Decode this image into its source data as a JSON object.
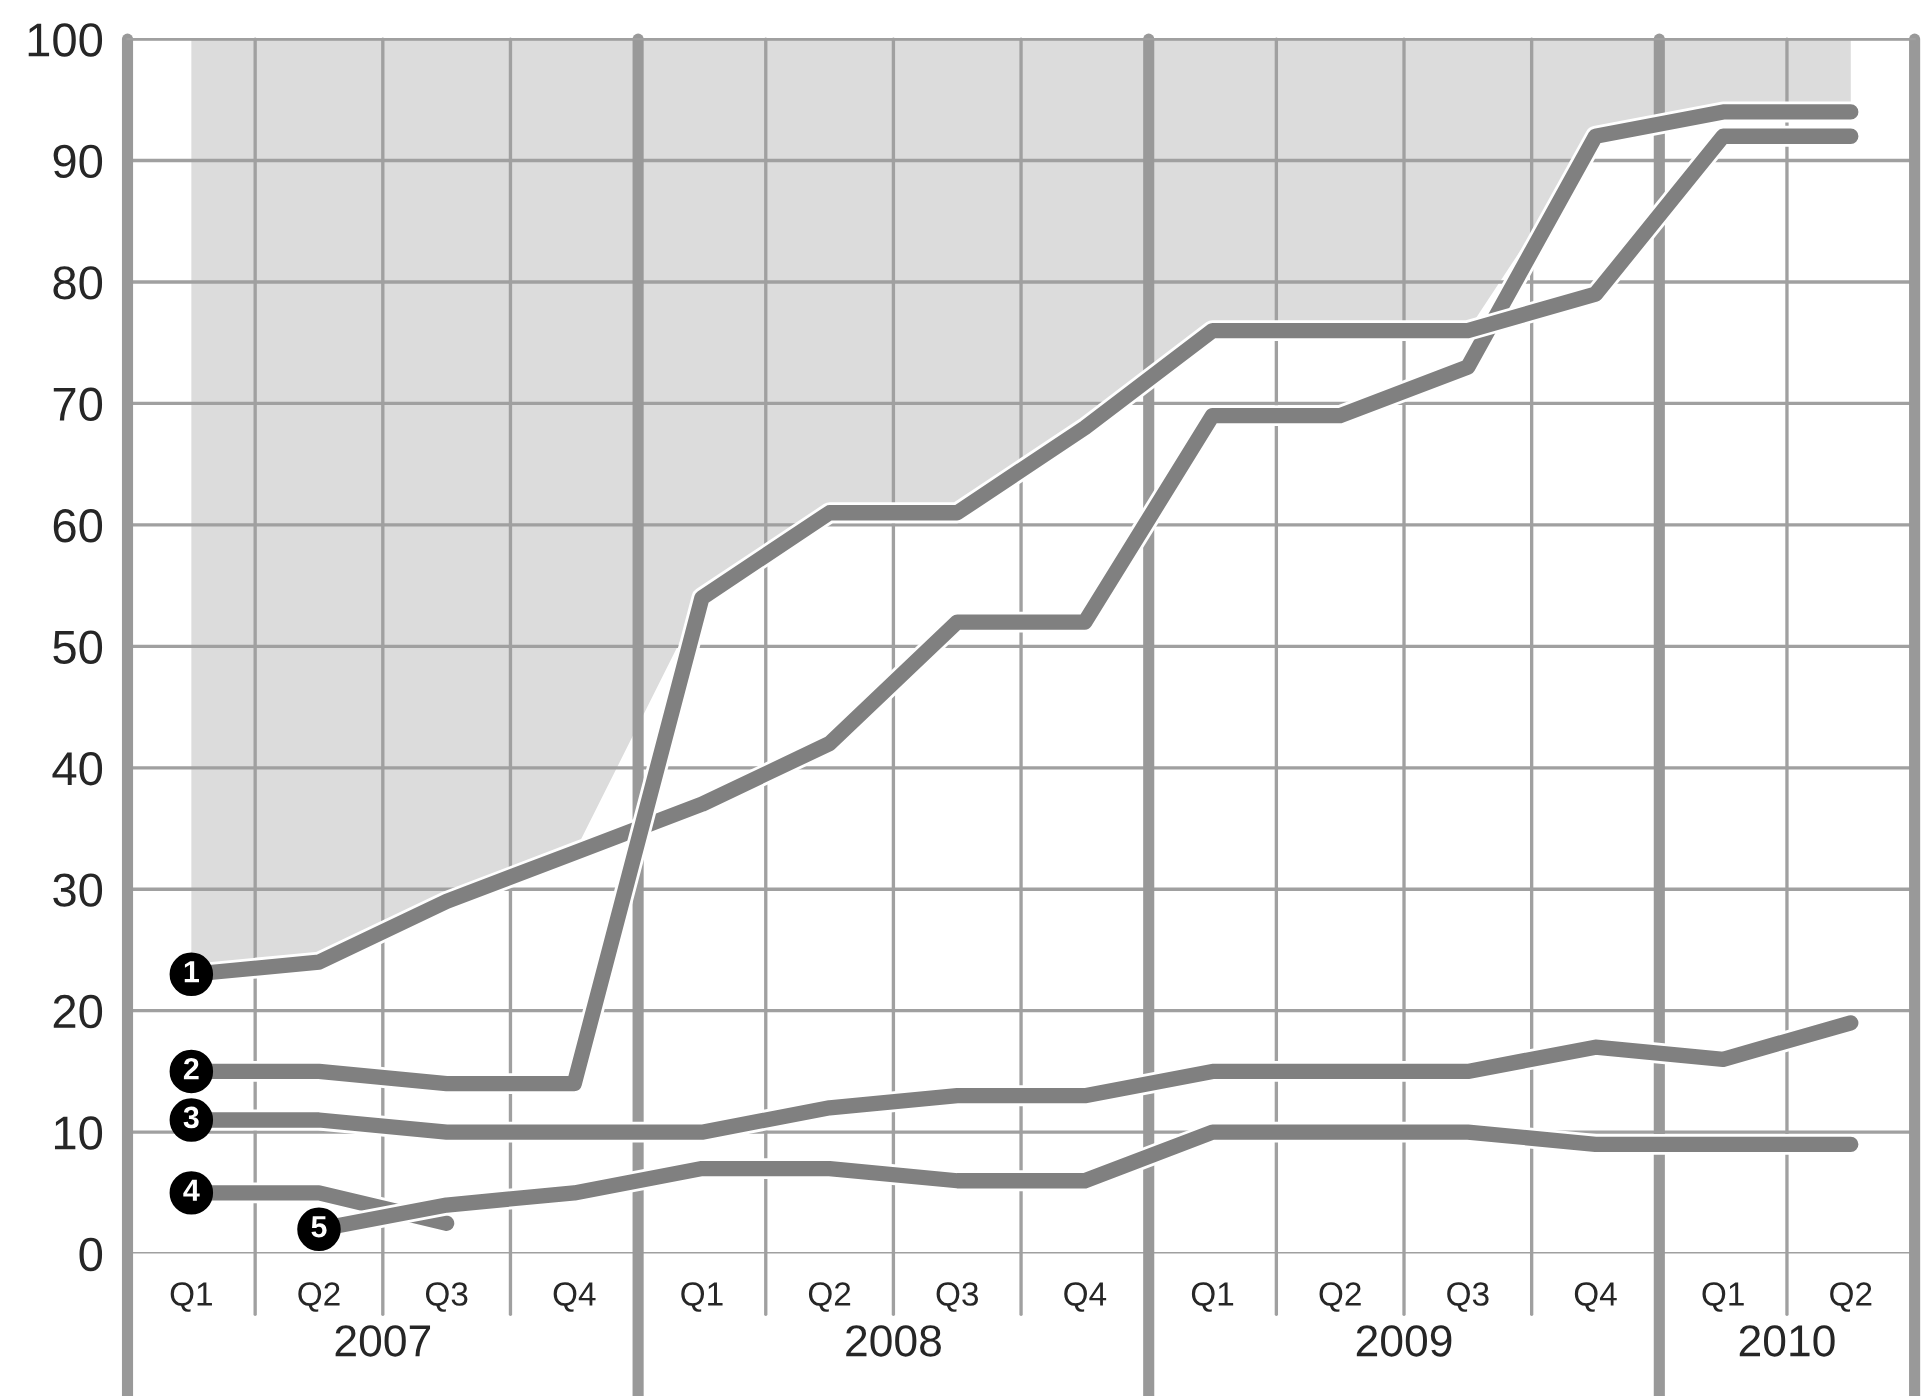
{
  "chart_data": {
    "type": "line",
    "categories": [
      "Q1",
      "Q2",
      "Q3",
      "Q4",
      "Q1",
      "Q2",
      "Q3",
      "Q4",
      "Q1",
      "Q2",
      "Q3",
      "Q4",
      "Q1",
      "Q2"
    ],
    "series": [
      {
        "type": "area",
        "color": "#dcdcdc",
        "values": [
          null,
          null,
          null,
          null,
          null,
          null,
          null,
          null,
          null,
          null,
          null,
          null,
          null,
          null
        ],
        "lower": [
          23,
          24,
          29,
          33,
          54,
          61,
          61,
          68,
          76,
          76,
          76,
          92,
          94,
          94
        ],
        "upper": [
          100,
          100,
          100,
          100,
          100,
          100,
          100,
          100,
          100,
          100,
          100,
          100,
          100,
          100
        ]
      },
      {
        "name": "1",
        "color": "#808080",
        "values": [
          23,
          24,
          29,
          33,
          37,
          42,
          52,
          52,
          69,
          69,
          73,
          92,
          94,
          94
        ]
      },
      {
        "name": "2",
        "color": "#808080",
        "values": [
          15,
          15,
          14,
          14,
          54,
          61,
          61,
          68,
          76,
          76,
          76,
          79,
          92,
          92
        ]
      },
      {
        "name": "3",
        "color": "#808080",
        "values": [
          11,
          11,
          10,
          10,
          10,
          12,
          13,
          13,
          15,
          15,
          15,
          17,
          16,
          19
        ]
      },
      {
        "name": "4",
        "color": "#808080",
        "values": [
          5,
          5,
          2.5,
          null,
          null,
          null,
          null,
          null,
          null,
          null,
          null,
          null,
          null,
          null
        ]
      },
      {
        "name": "5",
        "color": "#808080",
        "values": [
          null,
          2,
          4,
          5,
          7,
          7,
          6,
          6,
          10,
          10,
          10,
          9,
          9,
          9
        ]
      }
    ],
    "annotations": [
      "2007",
      "2008",
      "2009",
      "2010"
    ],
    "ylim": [
      0,
      100
    ],
    "yticks": [
      0,
      10,
      20,
      30,
      40,
      50,
      60,
      70,
      80,
      90,
      100
    ],
    "grid": true,
    "line_style": "solid"
  }
}
